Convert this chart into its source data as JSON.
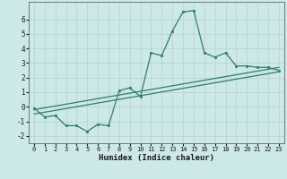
{
  "title": "",
  "xlabel": "Humidex (Indice chaleur)",
  "ylabel": "",
  "xlim": [
    -0.5,
    23.5
  ],
  "ylim": [
    -2.5,
    7.2
  ],
  "yticks": [
    -2,
    -1,
    0,
    1,
    2,
    3,
    4,
    5,
    6
  ],
  "xticks": [
    0,
    1,
    2,
    3,
    4,
    5,
    6,
    7,
    8,
    9,
    10,
    11,
    12,
    13,
    14,
    15,
    16,
    17,
    18,
    19,
    20,
    21,
    22,
    23
  ],
  "bg_color": "#cce8e8",
  "grid_color": "#b8d4d4",
  "line_color": "#2e7d6e",
  "main_x": [
    0,
    1,
    2,
    3,
    4,
    5,
    6,
    7,
    8,
    9,
    10,
    11,
    12,
    13,
    14,
    15,
    16,
    17,
    18,
    19,
    20,
    21,
    22,
    23
  ],
  "main_y": [
    -0.1,
    -0.7,
    -0.6,
    -1.3,
    -1.3,
    -1.7,
    -1.2,
    -1.3,
    1.1,
    1.3,
    0.7,
    3.7,
    3.5,
    5.2,
    6.5,
    6.6,
    3.7,
    3.4,
    3.7,
    2.8,
    2.8,
    2.7,
    2.7,
    2.5
  ],
  "line1_x": [
    0,
    23
  ],
  "line1_y": [
    -0.2,
    2.7
  ],
  "line2_x": [
    0,
    23
  ],
  "line2_y": [
    -0.5,
    2.4
  ]
}
